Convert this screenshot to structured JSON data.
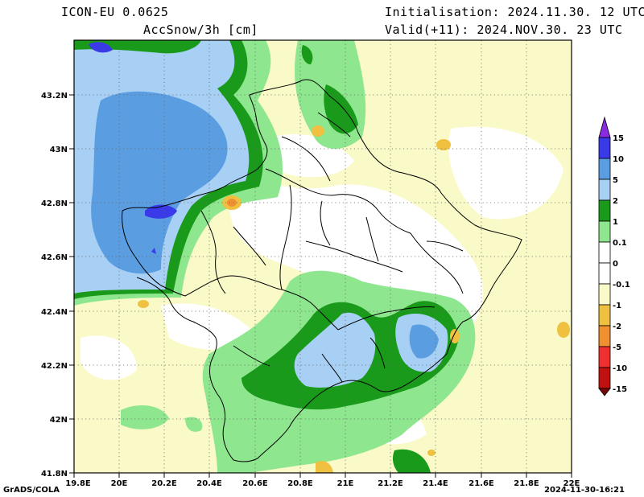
{
  "header": {
    "model": "ICON-EU 0.0625",
    "parameter": "AccSnow/3h [cm]",
    "initialisation": "Initialisation: 2024.11.30. 12 UTC",
    "valid": "Valid(+11): 2024.NOV.30. 23 UTC"
  },
  "axes": {
    "y_ticks": [
      "41.8N",
      "42N",
      "42.2N",
      "42.4N",
      "42.6N",
      "42.8N",
      "43N",
      "43.2N"
    ],
    "x_ticks": [
      "19.8E",
      "20E",
      "20.2E",
      "20.4E",
      "20.6E",
      "20.8E",
      "21E",
      "21.2E",
      "21.4E",
      "21.6E",
      "21.8E",
      "22E"
    ]
  },
  "colorbar": {
    "labels": [
      "15",
      "10",
      "5",
      "2",
      "1",
      "0.1",
      "0",
      "-0.1",
      "-1",
      "-2",
      "-5",
      "-10",
      "-15"
    ],
    "colors": {
      "above_15": "#8a2be2",
      "b10_15": "#3a3ae8",
      "b5_10": "#5a9de0",
      "b2_5": "#a8d0f5",
      "b1_2": "#1a9a1a",
      "b01_1": "#8ee68e",
      "b0_01": "#ffffff",
      "bm01_0": "#ffffff",
      "bm1_m01": "#fafac8",
      "bm2_m1": "#f0c040",
      "bm5_m2": "#f09030",
      "bm10_m5": "#f03030",
      "bm15_m10": "#c01010",
      "below_m15": "#7a0808"
    }
  },
  "footer": {
    "left": "GrADS/COLA",
    "right": "2024-11-30-16:21"
  }
}
